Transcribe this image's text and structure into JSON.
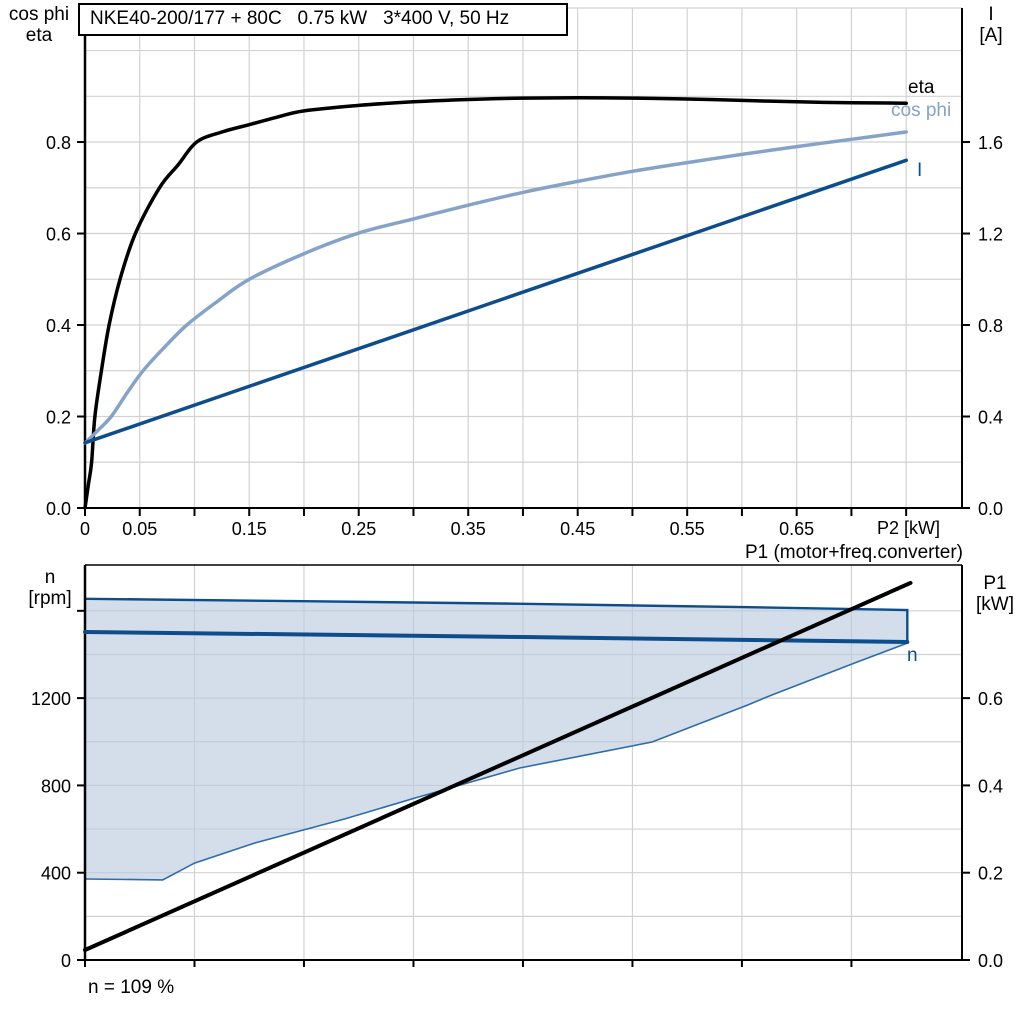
{
  "chart_data": {
    "chart1": {
      "type": "line",
      "title": "NKE40-200/177 + 80C   0.75 kW   3*400 V, 50 Hz",
      "left_axis_label": [
        "cos phi",
        "eta"
      ],
      "right_axis_label": [
        "I",
        "[A]"
      ],
      "x_axis_label": "P2 [kW]",
      "x_range": [
        0,
        0.8
      ],
      "left_range": [
        0,
        1.09
      ],
      "right_range": [
        0,
        2.18
      ],
      "grid": true,
      "x_ticks": [
        0,
        0.05,
        0.1,
        0.15,
        0.2,
        0.25,
        0.3,
        0.35,
        0.4,
        0.45,
        0.5,
        0.55,
        0.6,
        0.65,
        0.7,
        0.75
      ],
      "x_tick_labels": [
        {
          "v": 0,
          "t": "0"
        },
        {
          "v": 0.05,
          "t": "0.05"
        },
        {
          "v": 0.15,
          "t": "0.15"
        },
        {
          "v": 0.25,
          "t": "0.25"
        },
        {
          "v": 0.35,
          "t": "0.35"
        },
        {
          "v": 0.45,
          "t": "0.45"
        },
        {
          "v": 0.55,
          "t": "0.55"
        },
        {
          "v": 0.65,
          "t": "0.65"
        }
      ],
      "left_ticks": [
        {
          "v": 0.0,
          "t": "0.0"
        },
        {
          "v": 0.2,
          "t": "0.2"
        },
        {
          "v": 0.4,
          "t": "0.4"
        },
        {
          "v": 0.6,
          "t": "0.6"
        },
        {
          "v": 0.8,
          "t": "0.8"
        }
      ],
      "right_ticks": [
        {
          "v": 0.0,
          "t": "0.0"
        },
        {
          "v": 0.4,
          "t": "0.4"
        },
        {
          "v": 0.8,
          "t": "0.8"
        },
        {
          "v": 1.2,
          "t": "1.2"
        },
        {
          "v": 1.6,
          "t": "1.6"
        }
      ],
      "curve_labels": {
        "eta": "eta",
        "cos_phi": "cos phi",
        "i": "I"
      },
      "series": [
        {
          "id": "eta",
          "name": "eta",
          "color": "#000000",
          "width": 3.5,
          "smooth": true,
          "axis": "left",
          "points": [
            [
              0,
              0
            ],
            [
              0.003,
              0.05
            ],
            [
              0.006,
              0.1
            ],
            [
              0.009,
              0.2
            ],
            [
              0.015,
              0.3
            ],
            [
              0.022,
              0.4
            ],
            [
              0.032,
              0.5
            ],
            [
              0.046,
              0.6
            ],
            [
              0.068,
              0.7
            ],
            [
              0.085,
              0.75
            ],
            [
              0.102,
              0.8
            ],
            [
              0.125,
              0.822
            ],
            [
              0.15,
              0.838
            ],
            [
              0.175,
              0.854
            ],
            [
              0.2,
              0.868
            ],
            [
              0.25,
              0.88
            ],
            [
              0.3,
              0.888
            ],
            [
              0.35,
              0.893
            ],
            [
              0.4,
              0.896
            ],
            [
              0.45,
              0.897
            ],
            [
              0.5,
              0.896
            ],
            [
              0.55,
              0.894
            ],
            [
              0.6,
              0.891
            ],
            [
              0.65,
              0.888
            ],
            [
              0.7,
              0.886
            ],
            [
              0.75,
              0.885
            ]
          ]
        },
        {
          "id": "cos-phi",
          "name": "cos phi",
          "color": "#85a3c9",
          "width": 3.5,
          "smooth": true,
          "axis": "left",
          "points": [
            [
              0,
              0.142
            ],
            [
              0.012,
              0.17
            ],
            [
              0.024,
              0.2
            ],
            [
              0.038,
              0.25
            ],
            [
              0.053,
              0.3
            ],
            [
              0.072,
              0.35
            ],
            [
              0.093,
              0.4
            ],
            [
              0.12,
              0.45
            ],
            [
              0.15,
              0.5
            ],
            [
              0.2,
              0.556
            ],
            [
              0.25,
              0.601
            ],
            [
              0.3,
              0.632
            ],
            [
              0.35,
              0.662
            ],
            [
              0.4,
              0.69
            ],
            [
              0.45,
              0.714
            ],
            [
              0.5,
              0.736
            ],
            [
              0.55,
              0.755
            ],
            [
              0.6,
              0.773
            ],
            [
              0.65,
              0.79
            ],
            [
              0.7,
              0.806
            ],
            [
              0.75,
              0.822
            ]
          ]
        },
        {
          "id": "current",
          "name": "I",
          "color": "#0e4d8b",
          "width": 3.5,
          "smooth": false,
          "axis": "right",
          "points": [
            [
              0,
              0.285
            ],
            [
              0.75,
              1.52
            ]
          ]
        }
      ]
    },
    "chart2": {
      "type": "line",
      "top_label": "P1 (motor+freq.converter)",
      "left_axis_label": [
        "n",
        "[rpm]"
      ],
      "right_axis_label": [
        "P1",
        "[kW]"
      ],
      "annotation": "n = 109 %",
      "x_range": [
        0,
        0.8
      ],
      "left_range_rpm": [
        0,
        1810
      ],
      "right_range_kw": [
        0,
        0.905
      ],
      "grid": true,
      "x_ticks": [
        0,
        0.1,
        0.2,
        0.3,
        0.4,
        0.5,
        0.6,
        0.7
      ],
      "left_ticks": [
        {
          "v": 0,
          "t": "0"
        },
        {
          "v": 400,
          "t": "400"
        },
        {
          "v": 800,
          "t": "800"
        },
        {
          "v": 1200,
          "t": "1200"
        },
        {
          "v": 1600,
          "t": ""
        }
      ],
      "right_ticks": [
        {
          "v": 0.0,
          "t": "0.0"
        },
        {
          "v": 0.2,
          "t": "0.2"
        },
        {
          "v": 0.4,
          "t": "0.4"
        },
        {
          "v": 0.6,
          "t": "0.6"
        }
      ],
      "curve_labels": {
        "n": "n"
      },
      "envelope": {
        "fill": "#b9cade",
        "edge_color": "#2e6ca6",
        "dark_color": "#0e4d8b",
        "top_rpm": [
          [
            0,
            1655
          ],
          [
            0.2,
            1644
          ],
          [
            0.4,
            1632
          ],
          [
            0.6,
            1617
          ],
          [
            0.751,
            1604
          ]
        ],
        "bottom_rpm": [
          [
            0,
            371
          ],
          [
            0.071,
            367
          ],
          [
            0.1,
            444
          ],
          [
            0.155,
            536
          ],
          [
            0.237,
            646
          ],
          [
            0.301,
            742
          ],
          [
            0.397,
            880
          ],
          [
            0.518,
            999
          ],
          [
            0.605,
            1168
          ],
          [
            0.627,
            1214
          ],
          [
            0.705,
            1365
          ],
          [
            0.751,
            1452
          ]
        ]
      },
      "series": [
        {
          "id": "n",
          "name": "n",
          "color": "#0e4d8b",
          "width": 4,
          "axis": "rpm",
          "points": [
            [
              0,
              1503
            ],
            [
              0.4,
              1480
            ],
            [
              0.751,
              1457
            ]
          ]
        },
        {
          "id": "p1",
          "name": "P1",
          "color": "#000000",
          "width": 4,
          "axis": "kw",
          "points": [
            [
              0,
              0.023
            ],
            [
              0.754,
              0.864
            ]
          ]
        }
      ]
    },
    "style": {
      "grid_color": "#d2d2d2",
      "axis_color": "#000000"
    }
  }
}
